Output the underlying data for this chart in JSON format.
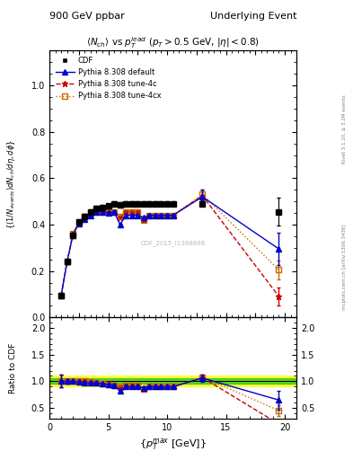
{
  "title_left": "900 GeV ppbar",
  "title_right": "Underlying Event",
  "plot_title": "$\\langle N_{ch}\\rangle$ vs $p_T^{lead}$ ($p_T > 0.5$ GeV, $|\\eta| < 0.8$)",
  "ylabel_main": "$\\{(1/N_{events}) dN_{ch}/d\\eta, d\\phi\\}$",
  "ylabel_ratio": "Ratio to CDF",
  "xlabel": "$\\{p_T^{max}$ [GeV]$\\}$",
  "rivet_label": "Rivet 3.1.10, ≥ 3.2M events",
  "mcplots_label": "mcplots.cern.ch [arXiv:1306.3436]",
  "watermark": "CDF_2015_I1388868",
  "cdf_x": [
    1.0,
    1.5,
    2.0,
    2.5,
    3.0,
    3.5,
    4.0,
    4.5,
    5.0,
    5.5,
    6.0,
    6.5,
    7.0,
    7.5,
    8.0,
    8.5,
    9.0,
    9.5,
    10.0,
    10.5,
    13.0,
    19.5
  ],
  "cdf_y": [
    0.095,
    0.24,
    0.355,
    0.41,
    0.435,
    0.455,
    0.47,
    0.475,
    0.48,
    0.49,
    0.485,
    0.49,
    0.49,
    0.49,
    0.49,
    0.49,
    0.49,
    0.49,
    0.49,
    0.49,
    0.49,
    0.455
  ],
  "cdf_yerr": [
    0.01,
    0.01,
    0.01,
    0.01,
    0.01,
    0.01,
    0.01,
    0.01,
    0.01,
    0.01,
    0.01,
    0.01,
    0.01,
    0.01,
    0.01,
    0.01,
    0.01,
    0.01,
    0.01,
    0.01,
    0.01,
    0.06
  ],
  "py_default_x": [
    1.0,
    1.5,
    2.0,
    2.5,
    3.0,
    3.5,
    4.0,
    4.5,
    5.0,
    5.5,
    6.0,
    6.5,
    7.0,
    7.5,
    8.0,
    8.5,
    9.0,
    9.5,
    10.0,
    10.5,
    13.0,
    19.5
  ],
  "py_default_y": [
    0.095,
    0.24,
    0.355,
    0.405,
    0.425,
    0.44,
    0.455,
    0.455,
    0.45,
    0.455,
    0.4,
    0.44,
    0.44,
    0.44,
    0.43,
    0.44,
    0.44,
    0.44,
    0.44,
    0.44,
    0.52,
    0.295
  ],
  "py_default_yerr": [
    0.005,
    0.005,
    0.005,
    0.005,
    0.005,
    0.005,
    0.005,
    0.005,
    0.005,
    0.005,
    0.005,
    0.005,
    0.005,
    0.005,
    0.005,
    0.005,
    0.005,
    0.005,
    0.005,
    0.005,
    0.03,
    0.07
  ],
  "py_4c_x": [
    1.0,
    1.5,
    2.0,
    2.5,
    3.0,
    3.5,
    4.0,
    4.5,
    5.0,
    5.5,
    6.0,
    6.5,
    7.0,
    7.5,
    8.0,
    8.5,
    9.0,
    9.5,
    10.0,
    10.5,
    13.0,
    19.5
  ],
  "py_4c_y": [
    0.095,
    0.24,
    0.36,
    0.41,
    0.435,
    0.45,
    0.46,
    0.455,
    0.455,
    0.455,
    0.43,
    0.455,
    0.455,
    0.455,
    0.42,
    0.44,
    0.44,
    0.44,
    0.44,
    0.44,
    0.525,
    0.09
  ],
  "py_4c_yerr": [
    0.005,
    0.005,
    0.005,
    0.005,
    0.005,
    0.005,
    0.005,
    0.005,
    0.005,
    0.005,
    0.005,
    0.005,
    0.005,
    0.005,
    0.005,
    0.005,
    0.005,
    0.005,
    0.005,
    0.005,
    0.02,
    0.04
  ],
  "py_4cx_x": [
    1.0,
    1.5,
    2.0,
    2.5,
    3.0,
    3.5,
    4.0,
    4.5,
    5.0,
    5.5,
    6.0,
    6.5,
    7.0,
    7.5,
    8.0,
    8.5,
    9.0,
    9.5,
    10.0,
    10.5,
    13.0,
    19.5
  ],
  "py_4cx_y": [
    0.095,
    0.24,
    0.36,
    0.41,
    0.435,
    0.45,
    0.455,
    0.455,
    0.455,
    0.455,
    0.435,
    0.455,
    0.455,
    0.455,
    0.42,
    0.44,
    0.44,
    0.44,
    0.44,
    0.44,
    0.53,
    0.205
  ],
  "py_4cx_yerr": [
    0.005,
    0.005,
    0.005,
    0.005,
    0.005,
    0.005,
    0.005,
    0.005,
    0.005,
    0.005,
    0.005,
    0.005,
    0.005,
    0.005,
    0.005,
    0.005,
    0.005,
    0.005,
    0.005,
    0.005,
    0.02,
    0.04
  ],
  "ylim_main": [
    0.0,
    1.15
  ],
  "ylim_ratio": [
    0.3,
    2.2
  ],
  "xlim": [
    0.0,
    21.0
  ],
  "color_cdf": "#000000",
  "color_default": "#0000cc",
  "color_4c": "#cc0000",
  "color_4cx": "#cc6600",
  "yticks_main": [
    0.0,
    0.2,
    0.4,
    0.6,
    0.8,
    1.0
  ],
  "yticks_ratio": [
    0.5,
    1.0,
    1.5,
    2.0
  ],
  "xticks": [
    0,
    5,
    10,
    15,
    20
  ]
}
